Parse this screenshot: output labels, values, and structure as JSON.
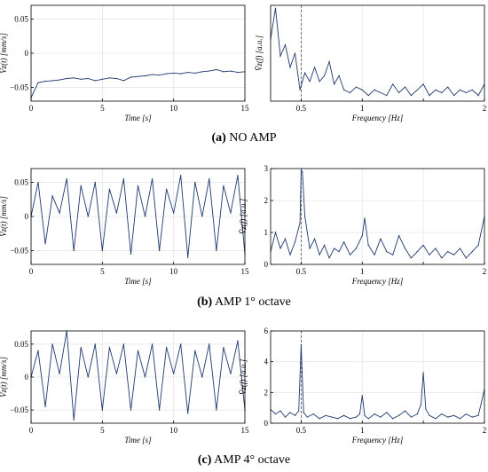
{
  "figure": {
    "captions": [
      {
        "letter": "(a)",
        "text": "NO AMP"
      },
      {
        "letter": "(b)",
        "text": "AMP 1° octave"
      },
      {
        "letter": "(c)",
        "text": "AMP 4° octave"
      }
    ]
  },
  "colors": {
    "line": "#1f3a6e",
    "axis": "#000000",
    "grid": "#e6e6e6",
    "marker": "#555555"
  },
  "chart_data": [
    {
      "id": "a-time",
      "type": "line",
      "xlabel": "Time [s]",
      "ylabel": "V̂z(t) [mm/s]",
      "xlim": [
        0,
        15
      ],
      "ylim": [
        -0.07,
        0.07
      ],
      "xticks": [
        0,
        5,
        10,
        15
      ],
      "xticklabels": [
        "0",
        "5",
        "10",
        "15"
      ],
      "yticks": [
        0.05,
        0,
        -0.05
      ],
      "yticklabels": [
        "0.05",
        "0",
        "−0.05"
      ],
      "grid": true,
      "x": [
        0,
        0.5,
        1,
        1.5,
        2,
        2.5,
        3,
        3.5,
        4,
        4.5,
        5,
        5.5,
        6,
        6.5,
        7,
        7.5,
        8,
        8.5,
        9,
        9.5,
        10,
        10.5,
        11,
        11.5,
        12,
        12.5,
        13,
        13.5,
        14,
        14.5,
        15
      ],
      "values": [
        -0.065,
        -0.043,
        -0.041,
        -0.04,
        -0.039,
        -0.037,
        -0.036,
        -0.038,
        -0.037,
        -0.04,
        -0.038,
        -0.036,
        -0.037,
        -0.04,
        -0.035,
        -0.034,
        -0.033,
        -0.031,
        -0.032,
        -0.03,
        -0.029,
        -0.03,
        -0.028,
        -0.029,
        -0.027,
        -0.026,
        -0.024,
        -0.027,
        -0.026,
        -0.028,
        -0.027
      ]
    },
    {
      "id": "a-freq",
      "type": "line",
      "xlabel": "Frequency [Hz]",
      "ylabel": "V̂z(f) [a.u.]",
      "xlim": [
        0.25,
        2
      ],
      "ylim": [
        0,
        1.7
      ],
      "xticks": [
        0.5,
        1,
        1.5,
        2
      ],
      "xticklabels": [
        "0.5",
        "1",
        "",
        "2"
      ],
      "yticks": [],
      "yticklabels": [],
      "marker_x": 0.5,
      "grid": true,
      "x": [
        0.25,
        0.29,
        0.33,
        0.37,
        0.41,
        0.45,
        0.49,
        0.53,
        0.57,
        0.61,
        0.65,
        0.69,
        0.73,
        0.77,
        0.81,
        0.85,
        0.9,
        0.95,
        1.0,
        1.05,
        1.1,
        1.15,
        1.2,
        1.25,
        1.3,
        1.35,
        1.4,
        1.45,
        1.5,
        1.55,
        1.6,
        1.65,
        1.7,
        1.75,
        1.8,
        1.85,
        1.9,
        1.95,
        2.0
      ],
      "values": [
        1.1,
        1.65,
        0.8,
        1.0,
        0.6,
        0.85,
        0.2,
        0.5,
        0.35,
        0.6,
        0.35,
        0.45,
        0.7,
        0.3,
        0.45,
        0.2,
        0.15,
        0.25,
        0.2,
        0.1,
        0.2,
        0.15,
        0.1,
        0.3,
        0.15,
        0.25,
        0.1,
        0.2,
        0.3,
        0.1,
        0.2,
        0.15,
        0.25,
        0.1,
        0.2,
        0.15,
        0.2,
        0.1,
        0.3
      ]
    },
    {
      "id": "b-time",
      "type": "line",
      "xlabel": "Time [s]",
      "ylabel": "V̂z(t) [mm/s]",
      "xlim": [
        0,
        15
      ],
      "ylim": [
        -0.07,
        0.07
      ],
      "xticks": [
        0,
        5,
        10,
        15
      ],
      "xticklabels": [
        "0",
        "5",
        "10",
        "15"
      ],
      "yticks": [
        0.05,
        0,
        -0.05
      ],
      "yticklabels": [
        "0.05",
        "0",
        "−0.05"
      ],
      "grid": true,
      "x": [
        0,
        0.5,
        1,
        1.5,
        2,
        2.5,
        3,
        3.5,
        4,
        4.5,
        5,
        5.5,
        6,
        6.5,
        7,
        7.5,
        8,
        8.5,
        9,
        9.5,
        10,
        10.5,
        11,
        11.5,
        12,
        12.5,
        13,
        13.5,
        14,
        14.5,
        15
      ],
      "values": [
        0.0,
        0.05,
        -0.04,
        0.03,
        0.005,
        0.055,
        -0.05,
        0.045,
        0.0,
        0.05,
        -0.05,
        0.04,
        0.005,
        0.055,
        -0.055,
        0.045,
        0.0,
        0.055,
        -0.05,
        0.04,
        0.005,
        0.06,
        -0.06,
        0.05,
        0.0,
        0.055,
        -0.05,
        0.045,
        0.005,
        0.06,
        -0.055
      ]
    },
    {
      "id": "b-freq",
      "type": "line",
      "xlabel": "Frequency [Hz]",
      "ylabel": "V̂z(f) [a.u.]",
      "xlim": [
        0.25,
        2
      ],
      "ylim": [
        0,
        3
      ],
      "xticks": [
        0.5,
        1,
        1.5,
        2
      ],
      "xticklabels": [
        "0.5",
        "1",
        "",
        "2"
      ],
      "yticks": [
        0,
        1,
        2,
        3
      ],
      "yticklabels": [
        "0",
        "1",
        "2",
        "3"
      ],
      "marker_x": 0.5,
      "grid": true,
      "x": [
        0.25,
        0.29,
        0.33,
        0.37,
        0.41,
        0.45,
        0.49,
        0.5,
        0.51,
        0.53,
        0.57,
        0.61,
        0.65,
        0.69,
        0.73,
        0.77,
        0.81,
        0.85,
        0.9,
        0.95,
        1.0,
        1.02,
        1.05,
        1.1,
        1.15,
        1.2,
        1.25,
        1.3,
        1.35,
        1.4,
        1.45,
        1.5,
        1.55,
        1.6,
        1.65,
        1.7,
        1.75,
        1.8,
        1.85,
        1.9,
        1.95,
        2.0
      ],
      "values": [
        0.4,
        1.0,
        0.5,
        0.8,
        0.3,
        0.7,
        1.3,
        2.95,
        2.9,
        1.5,
        0.5,
        0.8,
        0.3,
        0.6,
        0.2,
        0.5,
        0.4,
        0.7,
        0.3,
        0.5,
        0.9,
        1.45,
        0.6,
        0.3,
        0.8,
        0.4,
        0.3,
        0.9,
        0.5,
        0.2,
        0.4,
        0.6,
        0.3,
        0.5,
        0.2,
        0.4,
        0.3,
        0.5,
        0.2,
        0.4,
        0.6,
        1.5
      ]
    },
    {
      "id": "c-time",
      "type": "line",
      "xlabel": "Time [s]",
      "ylabel": "V̂z(t) [mm/s]",
      "xlim": [
        0,
        15
      ],
      "ylim": [
        -0.07,
        0.07
      ],
      "xticks": [
        0,
        5,
        10,
        15
      ],
      "xticklabels": [
        "0",
        "5",
        "10",
        "15"
      ],
      "yticks": [
        0.05,
        0,
        -0.05
      ],
      "yticklabels": [
        "0.05",
        "0",
        "−0.05"
      ],
      "grid": true,
      "x": [
        0,
        0.5,
        1,
        1.5,
        2,
        2.5,
        3,
        3.5,
        4,
        4.5,
        5,
        5.5,
        6,
        6.5,
        7,
        7.5,
        8,
        8.5,
        9,
        9.5,
        10,
        10.5,
        11,
        11.5,
        12,
        12.5,
        13,
        13.5,
        14,
        14.5,
        15
      ],
      "values": [
        0.0,
        0.04,
        -0.045,
        0.05,
        0.005,
        0.07,
        -0.065,
        0.045,
        0.0,
        0.05,
        -0.05,
        0.045,
        0.005,
        0.05,
        -0.05,
        0.04,
        0.0,
        0.05,
        -0.05,
        0.045,
        0.005,
        0.05,
        -0.055,
        0.04,
        0.0,
        0.05,
        -0.05,
        0.045,
        0.005,
        0.055,
        -0.05
      ]
    },
    {
      "id": "c-freq",
      "type": "line",
      "xlabel": "Frequency [Hz]",
      "ylabel": "V̂z(f) [a.u.]",
      "xlim": [
        0.25,
        2
      ],
      "ylim": [
        0,
        6
      ],
      "xticks": [
        0.5,
        1,
        1.5,
        2
      ],
      "xticklabels": [
        "0.5",
        "1",
        "",
        "2"
      ],
      "yticks": [
        0,
        2,
        4,
        6
      ],
      "yticklabels": [
        "0",
        "2",
        "4",
        "6"
      ],
      "marker_x": 0.5,
      "grid": true,
      "x": [
        0.25,
        0.29,
        0.33,
        0.37,
        0.41,
        0.45,
        0.48,
        0.5,
        0.52,
        0.55,
        0.6,
        0.65,
        0.7,
        0.75,
        0.8,
        0.85,
        0.9,
        0.95,
        0.98,
        1.0,
        1.02,
        1.05,
        1.1,
        1.15,
        1.2,
        1.25,
        1.3,
        1.35,
        1.4,
        1.45,
        1.48,
        1.5,
        1.52,
        1.55,
        1.6,
        1.65,
        1.7,
        1.75,
        1.8,
        1.85,
        1.9,
        1.95,
        2.0
      ],
      "values": [
        0.9,
        0.6,
        0.8,
        0.4,
        0.7,
        0.5,
        0.8,
        5.1,
        0.7,
        0.4,
        0.6,
        0.3,
        0.5,
        0.4,
        0.3,
        0.5,
        0.3,
        0.4,
        0.6,
        1.8,
        0.5,
        0.3,
        0.6,
        0.4,
        0.7,
        0.3,
        0.5,
        0.8,
        0.4,
        0.6,
        1.2,
        3.3,
        0.9,
        0.5,
        0.3,
        0.6,
        0.4,
        0.5,
        0.3,
        0.6,
        0.4,
        0.5,
        2.2
      ]
    }
  ]
}
